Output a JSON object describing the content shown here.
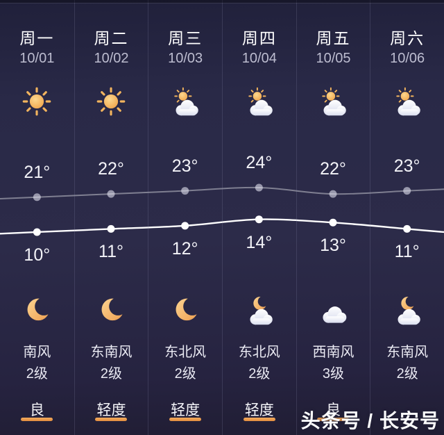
{
  "watermark": "头条号 / 长安号",
  "colors": {
    "background": "#2b2a49",
    "accent_orange": "#ED9B4A",
    "high_line": "rgba(255,255,255,0.42)",
    "low_line": "#ffffff",
    "text_primary": "#ffffff",
    "text_secondary": "#bdbdd0"
  },
  "forecast": {
    "columns": [
      {
        "day": "周一",
        "date": "10/01",
        "day_icon": "sunny",
        "high": "21°",
        "low": "10°",
        "night_icon": "moon",
        "wind_dir": "南风",
        "wind_level": "2级",
        "aqi": "良",
        "aqi_underline": "true"
      },
      {
        "day": "周二",
        "date": "10/02",
        "day_icon": "sunny",
        "high": "22°",
        "low": "11°",
        "night_icon": "moon",
        "wind_dir": "东南风",
        "wind_level": "2级",
        "aqi": "轻度",
        "aqi_underline": "true"
      },
      {
        "day": "周三",
        "date": "10/03",
        "day_icon": "partly-cloudy",
        "high": "23°",
        "low": "12°",
        "night_icon": "moon",
        "wind_dir": "东北风",
        "wind_level": "2级",
        "aqi": "轻度",
        "aqi_underline": "true"
      },
      {
        "day": "周四",
        "date": "10/04",
        "day_icon": "partly-cloudy",
        "high": "24°",
        "low": "14°",
        "night_icon": "moon-cloud",
        "wind_dir": "东北风",
        "wind_level": "2级",
        "aqi": "轻度",
        "aqi_underline": "true"
      },
      {
        "day": "周五",
        "date": "10/05",
        "day_icon": "partly-cloudy",
        "high": "22°",
        "low": "13°",
        "night_icon": "cloudy",
        "wind_dir": "西南风",
        "wind_level": "3级",
        "aqi": "良",
        "aqi_underline": "true"
      },
      {
        "day": "周六",
        "date": "10/06",
        "day_icon": "partly-cloudy",
        "high": "23°",
        "low": "11°",
        "night_icon": "moon-cloud",
        "wind_dir": "东南风",
        "wind_level": "2级",
        "aqi": "",
        "aqi_underline": "false"
      }
    ]
  },
  "chart_data": {
    "type": "line",
    "categories": [
      "周一",
      "周二",
      "周三",
      "周四",
      "周五",
      "周六"
    ],
    "x_dates": [
      "10/01",
      "10/02",
      "10/03",
      "10/04",
      "10/05",
      "10/06"
    ],
    "series": [
      {
        "name": "high",
        "values": [
          21,
          22,
          23,
          24,
          22,
          23
        ]
      },
      {
        "name": "low",
        "values": [
          10,
          11,
          12,
          14,
          13,
          11
        ]
      }
    ],
    "unit": "°C",
    "ylim": [
      8,
      26
    ],
    "grid": false,
    "legend": false
  }
}
